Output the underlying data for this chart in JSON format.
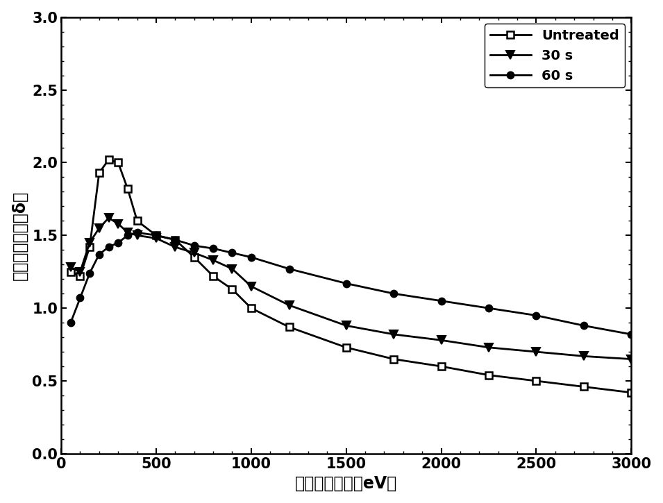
{
  "untreated_x": [
    50,
    100,
    150,
    200,
    250,
    300,
    350,
    400,
    500,
    600,
    700,
    800,
    900,
    1000,
    1200,
    1500,
    1750,
    2000,
    2250,
    2500,
    2750,
    3000
  ],
  "untreated_y": [
    1.25,
    1.22,
    1.42,
    1.93,
    2.02,
    2.0,
    1.82,
    1.6,
    1.5,
    1.47,
    1.35,
    1.22,
    1.13,
    1.0,
    0.87,
    0.73,
    0.65,
    0.6,
    0.54,
    0.5,
    0.46,
    0.42
  ],
  "s30_x": [
    50,
    100,
    150,
    200,
    250,
    300,
    350,
    400,
    500,
    600,
    700,
    800,
    900,
    1000,
    1200,
    1500,
    1750,
    2000,
    2250,
    2500,
    2750,
    3000
  ],
  "s30_y": [
    1.28,
    1.25,
    1.45,
    1.55,
    1.62,
    1.58,
    1.52,
    1.5,
    1.48,
    1.42,
    1.38,
    1.33,
    1.27,
    1.15,
    1.02,
    0.88,
    0.82,
    0.78,
    0.73,
    0.7,
    0.67,
    0.65
  ],
  "s60_x": [
    50,
    100,
    150,
    200,
    250,
    300,
    350,
    400,
    500,
    600,
    700,
    800,
    900,
    1000,
    1200,
    1500,
    1750,
    2000,
    2250,
    2500,
    2750,
    3000
  ],
  "s60_y": [
    0.9,
    1.07,
    1.24,
    1.37,
    1.42,
    1.45,
    1.5,
    1.52,
    1.5,
    1.47,
    1.43,
    1.41,
    1.38,
    1.35,
    1.27,
    1.17,
    1.1,
    1.05,
    1.0,
    0.95,
    0.88,
    0.82
  ],
  "xlabel": "入射电子能量（eV）",
  "ylabel": "二次电子产额（δ）",
  "xlim": [
    0,
    3000
  ],
  "ylim": [
    0.0,
    3.0
  ],
  "xticks": [
    0,
    500,
    1000,
    1500,
    2000,
    2500,
    3000
  ],
  "yticks": [
    0.0,
    0.5,
    1.0,
    1.5,
    2.0,
    2.5,
    3.0
  ],
  "legend_labels": [
    "Untreated",
    "30 s",
    "60 s"
  ],
  "line_color": "#000000",
  "background_color": "#ffffff"
}
